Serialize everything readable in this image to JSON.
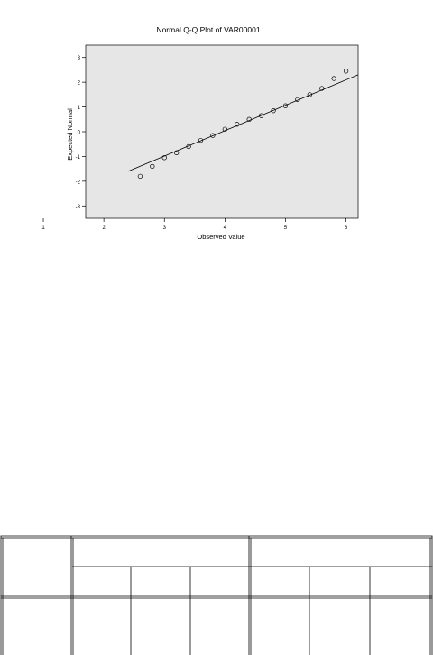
{
  "chart_data": {
    "type": "scatter",
    "title": "Normal Q-Q Plot of VAR00001",
    "xlabel": "Observed Value",
    "ylabel": "Expected Normal",
    "xlim": [
      1.7,
      6.2
    ],
    "ylim": [
      -3.5,
      3.5
    ],
    "x_ticks": [
      "1",
      "2",
      "3",
      "4",
      "5",
      "6"
    ],
    "y_ticks": [
      "3",
      "2",
      "1",
      "0",
      "-1",
      "-2",
      "-3"
    ],
    "plot_background": "#e6e6e6",
    "grid": false,
    "points": [
      {
        "x": 2.6,
        "y": -1.8
      },
      {
        "x": 2.8,
        "y": -1.4
      },
      {
        "x": 3.0,
        "y": -1.05
      },
      {
        "x": 3.2,
        "y": -0.85
      },
      {
        "x": 3.4,
        "y": -0.6
      },
      {
        "x": 3.6,
        "y": -0.35
      },
      {
        "x": 3.8,
        "y": -0.15
      },
      {
        "x": 4.0,
        "y": 0.1
      },
      {
        "x": 4.2,
        "y": 0.3
      },
      {
        "x": 4.4,
        "y": 0.5
      },
      {
        "x": 4.6,
        "y": 0.65
      },
      {
        "x": 4.8,
        "y": 0.85
      },
      {
        "x": 5.0,
        "y": 1.05
      },
      {
        "x": 5.2,
        "y": 1.3
      },
      {
        "x": 5.4,
        "y": 1.5
      },
      {
        "x": 5.6,
        "y": 1.75
      },
      {
        "x": 5.8,
        "y": 2.15
      },
      {
        "x": 6.0,
        "y": 2.45
      }
    ],
    "reference_line": {
      "x": [
        2.4,
        6.2
      ],
      "y": [
        -1.6,
        2.3
      ]
    }
  }
}
